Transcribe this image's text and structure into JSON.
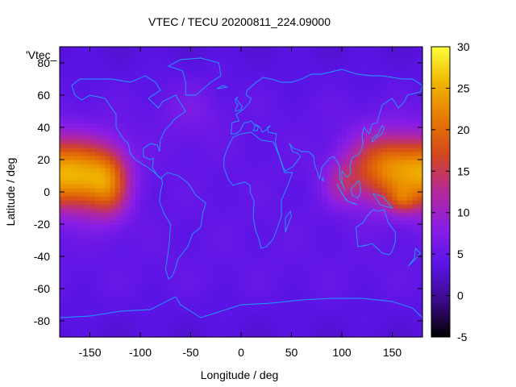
{
  "chart_data": {
    "type": "heatmap",
    "title": "VTEC / TECU 20200811_224.09000",
    "xlabel": "Longitude / deg",
    "ylabel": "Latitude / deg",
    "key_label": "'Vtec_",
    "xlim": [
      -180,
      180
    ],
    "ylim": [
      -90,
      90
    ],
    "xticks": [
      -150,
      -100,
      -50,
      0,
      50,
      100,
      150
    ],
    "yticks": [
      -80,
      -60,
      -40,
      -20,
      0,
      20,
      40,
      60,
      80
    ],
    "zlim": [
      -5,
      30
    ],
    "zticks": [
      -5,
      0,
      5,
      10,
      15,
      20,
      25,
      30
    ],
    "colormap": [
      "#000000",
      "#3c0a8a",
      "#5a14e6",
      "#8a1ee6",
      "#b4289a",
      "#d2461e",
      "#e67800",
      "#f0b400",
      "#ffff3c"
    ],
    "coastline_color": "#1ea0ff",
    "baseline_vtec": 4.5,
    "polar_vtec": 3.2,
    "enhancements": [
      {
        "lon": -160,
        "lat": 10,
        "vtec": 18,
        "lon_width": 38,
        "lat_width": 22
      },
      {
        "lon": -130,
        "lat": 5,
        "vtec": 9,
        "lon_width": 20,
        "lat_width": 22
      },
      {
        "lon": 145,
        "lat": 15,
        "vtec": 16,
        "lon_width": 40,
        "lat_width": 22
      },
      {
        "lon": 160,
        "lat": -5,
        "vtec": 6,
        "lon_width": 14,
        "lat_width": 8
      },
      {
        "lon": 100,
        "lat": 5,
        "vtec": 5,
        "lon_width": 18,
        "lat_width": 14
      },
      {
        "lon": -50,
        "lat": 50,
        "vtec": 2,
        "lon_width": 30,
        "lat_width": 20
      }
    ]
  }
}
